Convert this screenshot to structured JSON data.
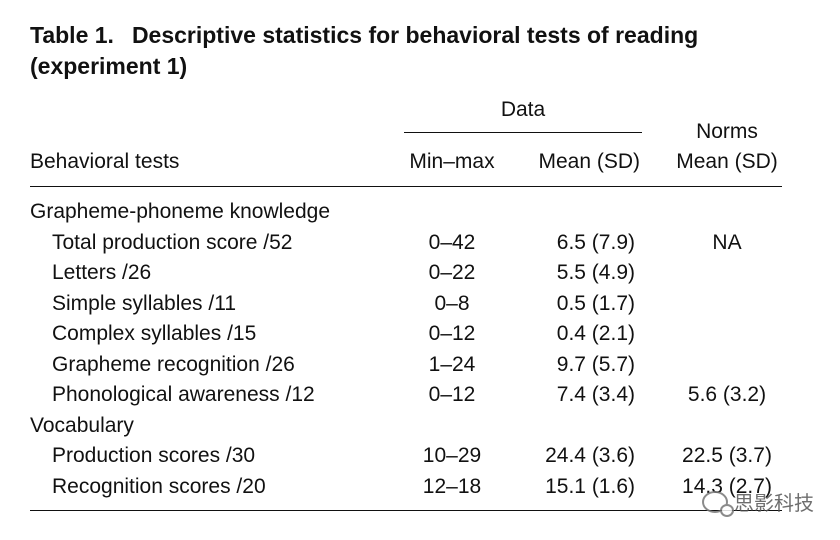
{
  "title": {
    "label": "Table 1.",
    "text": "Descriptive statistics for behavioral tests of reading (experiment 1)"
  },
  "header": {
    "group_data": "Data",
    "group_norms": "Norms",
    "col_tests": "Behavioral tests",
    "col_minmax": "Min–max",
    "col_mean": "Mean (SD)",
    "col_norm_mean": "Mean (SD)"
  },
  "sections": [
    {
      "name": "Grapheme-phoneme knowledge",
      "rows": [
        {
          "test": "Total production score /52",
          "minmax": "0–42",
          "mean": "6.5 (7.9)",
          "norm": "NA"
        },
        {
          "test": "Letters /26",
          "minmax": "0–22",
          "mean": "5.5 (4.9)",
          "norm": ""
        },
        {
          "test": "Simple syllables /11",
          "minmax": "0–8",
          "mean": "0.5 (1.7)",
          "norm": ""
        },
        {
          "test": "Complex syllables /15",
          "minmax": "0–12",
          "mean": "0.4 (2.1)",
          "norm": ""
        },
        {
          "test": "Grapheme recognition /26",
          "minmax": "1–24",
          "mean": "9.7 (5.7)",
          "norm": ""
        },
        {
          "test": "Phonological awareness /12",
          "minmax": "0–12",
          "mean": "7.4 (3.4)",
          "norm": "5.6 (3.2)"
        }
      ]
    },
    {
      "name": "Vocabulary",
      "rows": [
        {
          "test": "Production scores /30",
          "minmax": "10–29",
          "mean": "24.4 (3.6)",
          "norm": "22.5 (3.7)"
        },
        {
          "test": "Recognition scores /20",
          "minmax": "12–18",
          "mean": "15.1 (1.6)",
          "norm": "14.3 (2.7)"
        }
      ]
    }
  ],
  "watermark": {
    "icon": "wechat-icon",
    "text": "思影科技"
  }
}
